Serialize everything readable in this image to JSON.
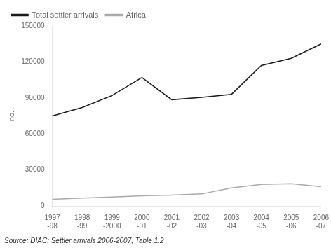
{
  "chart_data": {
    "type": "line",
    "categories": [
      "1997\n-98",
      "1998\n-99",
      "1999\n-2000",
      "2000\n-01",
      "2001\n-02",
      "2002\n-03",
      "2003\n-04",
      "2004\n-05",
      "2005\n-06",
      "2006\n-07"
    ],
    "series": [
      {
        "name": "Total settler arrivals",
        "color": "#1a1a1a",
        "values": [
          75000,
          82000,
          92000,
          107000,
          88500,
          90500,
          93000,
          117000,
          123000,
          135000
        ]
      },
      {
        "name": "Africa",
        "color": "#aaaaaa",
        "values": [
          5500,
          6500,
          7500,
          8500,
          9000,
          10000,
          15000,
          18000,
          18500,
          16000
        ]
      }
    ],
    "ylabel": "no.",
    "ylim": [
      0,
      150000
    ],
    "yticks": [
      0,
      30000,
      60000,
      90000,
      120000,
      150000
    ],
    "grid": false,
    "legend": "upper left",
    "annotations": [
      "Source: DIAC: Settler arrivals 2006-2007, Table 1.2"
    ]
  }
}
